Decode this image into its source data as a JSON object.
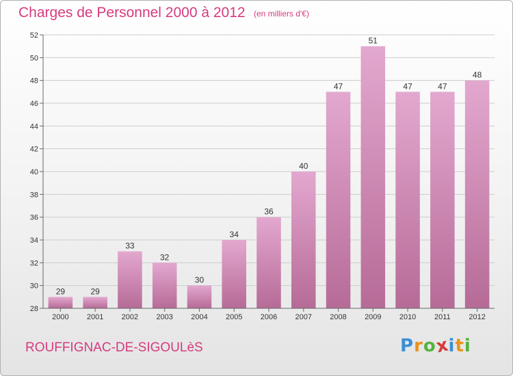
{
  "title": "Charges de Personnel 2000 à 2012",
  "unit_note": "(en milliers d'€)",
  "commune": "ROUFFIGNAC-DE-SIGOULèS",
  "logo": {
    "text": "Proxiti",
    "letters": [
      "P",
      "r",
      "o",
      "x",
      "i",
      "t",
      "i"
    ],
    "colors": [
      "#3a8fd6",
      "#e8931c",
      "#54b33d",
      "#d63a3a",
      "#3a8fd6",
      "#e8931c",
      "#54b33d"
    ]
  },
  "colors": {
    "bar_top": "#e3a8cf",
    "bar_bottom": "#b66b97",
    "accent": "#d63a7e",
    "grid": "#cccccc"
  },
  "chart_data": {
    "type": "bar",
    "title": "Charges de Personnel 2000 à 2012",
    "xlabel": "",
    "ylabel": "",
    "categories": [
      "2000",
      "2001",
      "2002",
      "2003",
      "2004",
      "2005",
      "2006",
      "2007",
      "2008",
      "2009",
      "2010",
      "2011",
      "2012"
    ],
    "values": [
      29,
      29,
      33,
      32,
      30,
      34,
      36,
      40,
      47,
      51,
      47,
      47,
      48
    ],
    "data_labels": [
      "29",
      "29",
      "33",
      "32",
      "30",
      "34",
      "36",
      "40",
      "47",
      "51",
      "47",
      "47",
      "48"
    ],
    "ylim": [
      28,
      52
    ],
    "yticks": [
      28,
      30,
      32,
      34,
      36,
      38,
      40,
      42,
      44,
      46,
      48,
      50,
      52
    ],
    "grid": true,
    "legend": "none"
  }
}
